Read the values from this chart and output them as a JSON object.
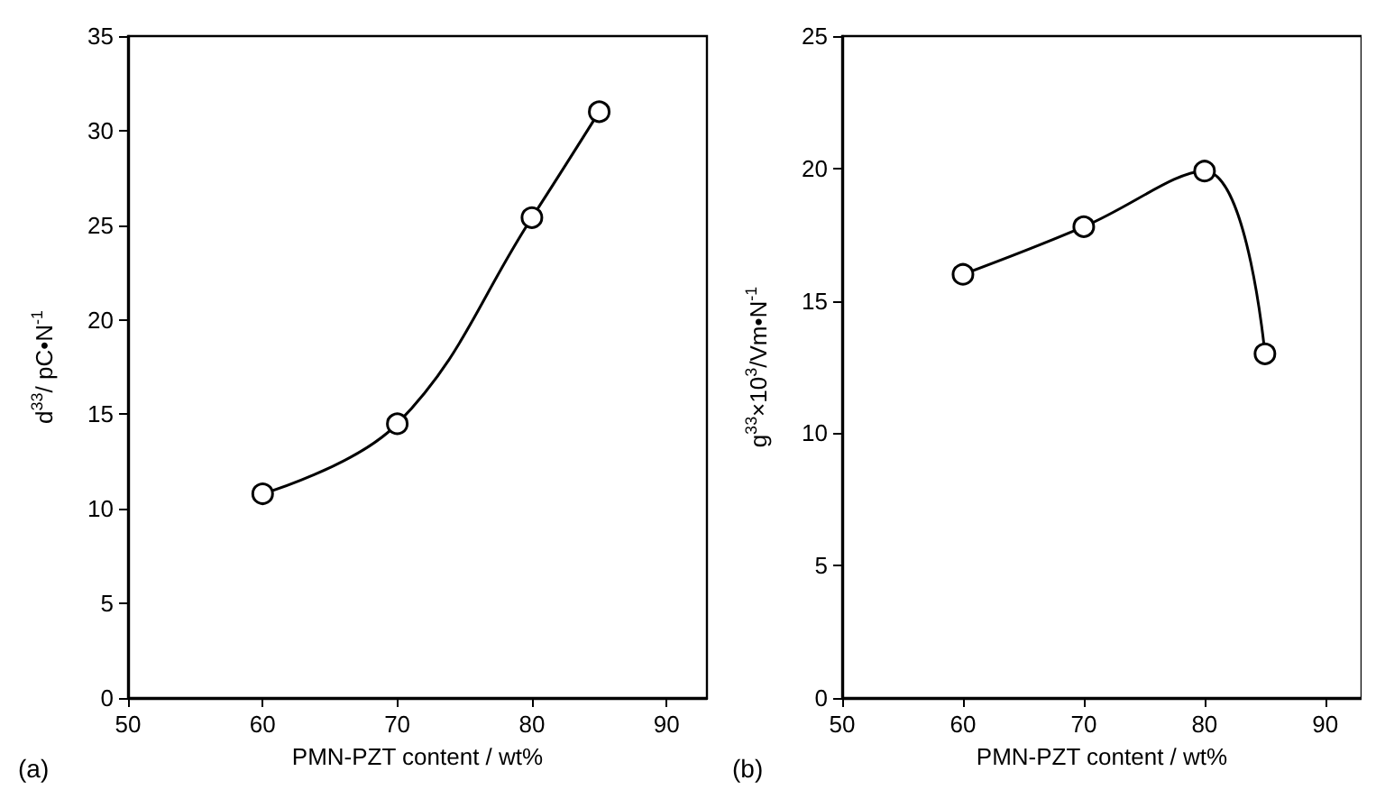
{
  "chart_data": [
    {
      "type": "line",
      "xlabel": "PMN-PZT content / wt%",
      "ylabel": "d$^{33}$/ pC•N$^{-1}$",
      "x": [
        60,
        70,
        80,
        85
      ],
      "series": [
        {
          "color": "#000000",
          "values": [
            10.8,
            14.5,
            25.4,
            31
          ]
        }
      ],
      "xlim": [
        50,
        93
      ],
      "xticks": [
        50,
        60,
        70,
        80,
        90
      ],
      "ylim": [
        0,
        35
      ],
      "yticks": [
        0,
        5,
        10,
        15,
        20,
        25,
        30,
        35
      ],
      "marker": "circle",
      "line_style": "solid",
      "annotations": [
        "(a)"
      ]
    },
    {
      "type": "line",
      "xlabel": "PMN-PZT content / wt%",
      "ylabel": "g$^{33}$×10$^{3}$/Vm•N$^{-1}$",
      "x": [
        60,
        70,
        80,
        85
      ],
      "series": [
        {
          "color": "#000000",
          "values": [
            16,
            17.8,
            19.9,
            13
          ]
        }
      ],
      "xlim": [
        50,
        93
      ],
      "xticks": [
        50,
        60,
        70,
        80,
        90
      ],
      "ylim": [
        0,
        25
      ],
      "yticks": [
        0,
        5,
        10,
        15,
        20,
        25
      ],
      "marker": "circle",
      "line_style": "solid",
      "annotations": [
        "(b)"
      ]
    }
  ]
}
